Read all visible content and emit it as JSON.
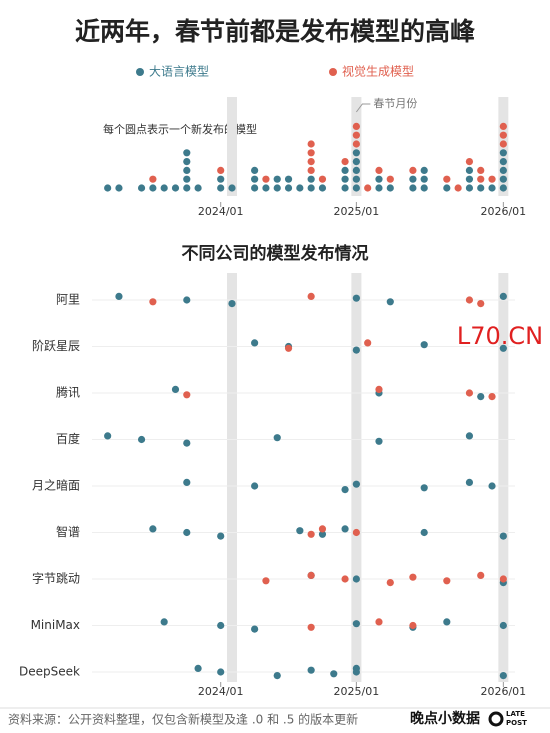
{
  "title": "近两年，春节前都是发布模型的高峰",
  "chart_data": [
    {
      "type": "dot_stack",
      "note": "每个圆点表示一个新发布的模型",
      "annotation": "春节月份",
      "x": [
        0,
        1,
        2,
        3,
        4,
        5,
        6,
        7,
        8,
        9,
        10,
        11,
        12,
        13,
        14,
        15,
        16,
        17,
        18,
        19,
        20,
        21,
        22,
        23,
        24,
        25,
        26,
        27,
        28,
        29,
        30,
        31,
        32,
        33,
        34,
        35
      ],
      "xlim": [
        -0.5,
        35.5
      ],
      "xticks": [
        {
          "value": 10,
          "label": "2024/01"
        },
        {
          "value": 22,
          "label": "2025/01"
        },
        {
          "value": 35,
          "label": "2026/01"
        }
      ],
      "highlight": [
        11,
        22,
        35
      ],
      "series": [
        {
          "name": "大语言模型",
          "color": "#3d7a8c",
          "values": [
            1,
            1,
            0,
            1,
            1,
            1,
            1,
            5,
            1,
            0,
            2,
            1,
            0,
            3,
            1,
            2,
            2,
            1,
            2,
            1,
            0,
            3,
            5,
            0,
            2,
            1,
            0,
            2,
            3,
            0,
            1,
            0,
            3,
            1,
            1,
            5
          ]
        },
        {
          "name": "视觉生成模型",
          "color": "#e0604f",
          "values": [
            0,
            0,
            0,
            0,
            1,
            0,
            0,
            0,
            0,
            0,
            1,
            0,
            0,
            0,
            1,
            0,
            0,
            0,
            4,
            1,
            0,
            1,
            3,
            1,
            1,
            1,
            0,
            1,
            0,
            0,
            1,
            1,
            1,
            2,
            1,
            3
          ]
        }
      ]
    },
    {
      "type": "strip",
      "title": "不同公司的模型发布情况",
      "xlim": [
        -0.5,
        35.5
      ],
      "xticks": [
        {
          "value": 10,
          "label": "2024/01"
        },
        {
          "value": 22,
          "label": "2025/01"
        },
        {
          "value": 35,
          "label": "2026/01"
        }
      ],
      "highlight": [
        11,
        22,
        35
      ],
      "categories": [
        "阿里",
        "阶跃星辰",
        "腾讯",
        "百度",
        "月之暗面",
        "智谱",
        "字节跳动",
        "MiniMax",
        "DeepSeek"
      ],
      "series": [
        {
          "color": "#3d7a8c",
          "values": [
            [
              1,
              7,
              11,
              22,
              25,
              35
            ],
            [
              13,
              16,
              22,
              28,
              35
            ],
            [
              6,
              24,
              33
            ],
            [
              0,
              3,
              7,
              15,
              24,
              32
            ],
            [
              7,
              13,
              21,
              22,
              28,
              32,
              34
            ],
            [
              4,
              7,
              10,
              17,
              19,
              21,
              28,
              35
            ],
            [
              18,
              22,
              35
            ],
            [
              5,
              10,
              13,
              22,
              27,
              30,
              35
            ],
            [
              8,
              10,
              15,
              18,
              20,
              22,
              22,
              35
            ]
          ]
        },
        {
          "color": "#e0604f",
          "values": [
            [
              4,
              18,
              32,
              33
            ],
            [
              16,
              23
            ],
            [
              7,
              24,
              32,
              34
            ],
            [],
            [],
            [
              18,
              19,
              22
            ],
            [
              14,
              18,
              21,
              25,
              27,
              30,
              33,
              35
            ],
            [
              18,
              24,
              27
            ],
            []
          ]
        }
      ]
    }
  ],
  "watermark": "L70.CN",
  "footer": {
    "source": "资料来源：公开资料整理，仅包含新模型及逢 .0 和 .5 的版本更新",
    "brand": "晚点小数据",
    "logo": [
      "LATE",
      "POST"
    ]
  }
}
